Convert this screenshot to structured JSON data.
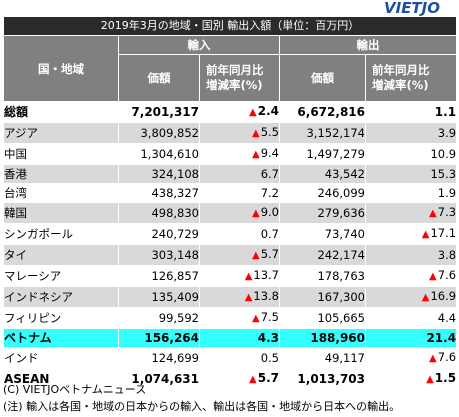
{
  "brand": "VIETJO",
  "title": "2019年3月の地域・国別 輸出入額（単位：百万円）",
  "headers": {
    "region": "国・地域",
    "import": "輸入",
    "export": "輸出",
    "value": "価額",
    "change_line1": "前年同月比",
    "change_line2": "増減率(%)"
  },
  "rows": [
    {
      "name": "総額",
      "imp": "7,201,317",
      "impChg": "2.4",
      "impUp": true,
      "exp": "6,672,816",
      "expChg": "1.1",
      "expUp": false
    },
    {
      "name": "アジア",
      "imp": "3,809,852",
      "impChg": "5.5",
      "impUp": true,
      "exp": "3,152,174",
      "expChg": "3.9",
      "expUp": false
    },
    {
      "name": "中国",
      "imp": "1,304,610",
      "impChg": "9.4",
      "impUp": true,
      "exp": "1,497,279",
      "expChg": "10.9",
      "expUp": false
    },
    {
      "name": "香港",
      "imp": "324,108",
      "impChg": "6.7",
      "impUp": false,
      "exp": "43,542",
      "expChg": "15.3",
      "expUp": false
    },
    {
      "name": "台湾",
      "imp": "438,327",
      "impChg": "7.2",
      "impUp": false,
      "exp": "246,099",
      "expChg": "1.9",
      "expUp": false
    },
    {
      "name": "韓国",
      "imp": "498,830",
      "impChg": "9.0",
      "impUp": true,
      "exp": "279,636",
      "expChg": "7.3",
      "expUp": true
    },
    {
      "name": "シンガポール",
      "imp": "240,729",
      "impChg": "0.7",
      "impUp": false,
      "exp": "73,740",
      "expChg": "17.1",
      "expUp": true
    },
    {
      "name": "タイ",
      "imp": "303,148",
      "impChg": "5.7",
      "impUp": true,
      "exp": "242,174",
      "expChg": "3.8",
      "expUp": false
    },
    {
      "name": "マレーシア",
      "imp": "126,857",
      "impChg": "13.7",
      "impUp": true,
      "exp": "178,763",
      "expChg": "7.6",
      "expUp": true
    },
    {
      "name": "インドネシア",
      "imp": "135,409",
      "impChg": "13.8",
      "impUp": true,
      "exp": "167,300",
      "expChg": "16.9",
      "expUp": true
    },
    {
      "name": "フィリピン",
      "imp": "99,592",
      "impChg": "7.5",
      "impUp": true,
      "exp": "105,665",
      "expChg": "4.4",
      "expUp": false
    },
    {
      "name": "ベトナム",
      "imp": "156,264",
      "impChg": "4.3",
      "impUp": false,
      "exp": "188,960",
      "expChg": "21.4",
      "expUp": false
    },
    {
      "name": "インド",
      "imp": "124,699",
      "impChg": "0.5",
      "impUp": false,
      "exp": "49,117",
      "expChg": "7.6",
      "expUp": true
    },
    {
      "name": "ASEAN",
      "imp": "1,074,631",
      "impChg": "5.7",
      "impUp": true,
      "exp": "1,013,703",
      "expChg": "1.5",
      "expUp": true
    }
  ],
  "triangle": "▲",
  "note_source": "(C) VIETJOベトナムニュース",
  "note_remark": "(注) 輸入は各国・地域の日本からの輸入、輸出は各国・地域から日本への輸出。",
  "colors": {
    "header_dark": "#2b2b2b",
    "header_gray": "#808080",
    "row_gray": "#d9d9d9",
    "vietnam_highlight": "#33ffff",
    "triangle_red": "#ff0000",
    "logo_blue": "#1f4fa0"
  }
}
